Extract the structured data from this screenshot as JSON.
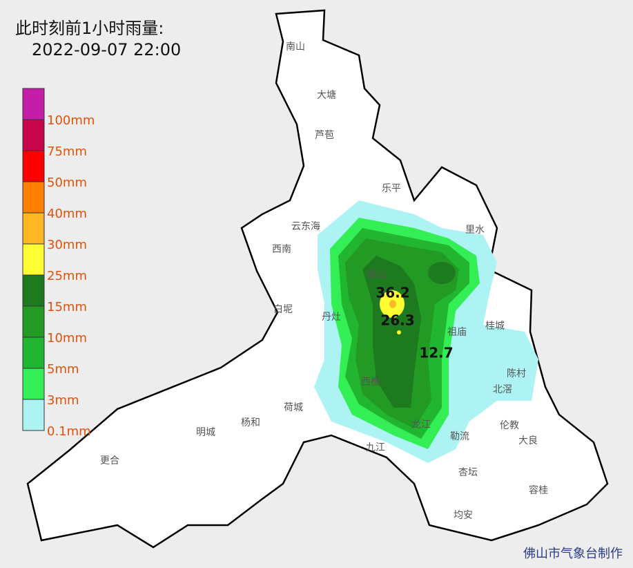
{
  "header": {
    "title": "此时刻前1小时雨量:",
    "time": "2022-09-07 22:00"
  },
  "legend": {
    "colors": [
      "#c41ea8",
      "#c8064e",
      "#ff0000",
      "#ff7f00",
      "#ffb726",
      "#ffff33",
      "#1e7a1e",
      "#239a23",
      "#22b530",
      "#33ee55",
      "#aef3f3"
    ],
    "labels": [
      "100mm",
      "75mm",
      "50mm",
      "40mm",
      "30mm",
      "25mm",
      "15mm",
      "10mm",
      "5mm",
      "3mm",
      "0.1mm"
    ]
  },
  "places": [
    "南山",
    "大塘",
    "芦苞",
    "乐平",
    "云东海",
    "西南",
    "里水",
    "狮山",
    "白坭",
    "丹灶",
    "祖庙",
    "桂城",
    "陈村",
    "北滘",
    "西樵",
    "荷城",
    "杨和",
    "明城",
    "更合",
    "九江",
    "龙江",
    "勒流",
    "伦教",
    "大良",
    "杏坛",
    "容桂",
    "均安"
  ],
  "stations": [
    "36.2",
    "26.3",
    "12.7"
  ],
  "credit": "佛山市气象台制作"
}
